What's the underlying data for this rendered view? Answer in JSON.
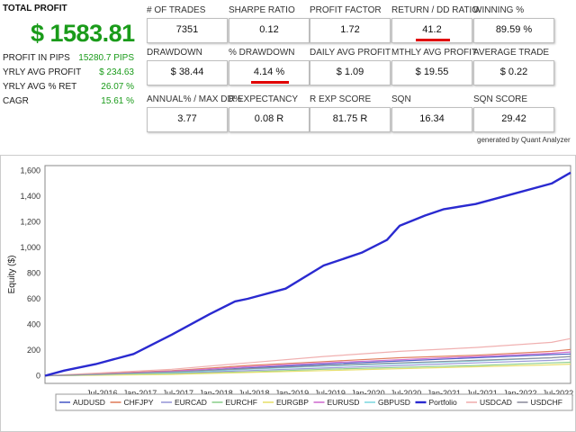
{
  "summary": {
    "total_profit_label": "TOTAL PROFIT",
    "total_profit_value": "$ 1583.81",
    "rows": [
      {
        "label": "PROFIT IN PIPS",
        "value": "15280.7 PIPS"
      },
      {
        "label": "YRLY AVG PROFIT",
        "value": "$ 234.63"
      },
      {
        "label": "YRLY AVG % RET",
        "value": "26.07 %"
      },
      {
        "label": "CAGR",
        "value": "15.61 %"
      }
    ]
  },
  "metrics": [
    {
      "label": "# OF TRADES",
      "value": "7351"
    },
    {
      "label": "SHARPE RATIO",
      "value": "0.12"
    },
    {
      "label": "PROFIT FACTOR",
      "value": "1.72"
    },
    {
      "label": "RETURN / DD RATIO",
      "value": "41.2",
      "highlight": true
    },
    {
      "label": "WINNING %",
      "value": "89.59 %"
    },
    {
      "label": "DRAWDOWN",
      "value": "$ 38.44"
    },
    {
      "label": "% DRAWDOWN",
      "value": "4.14 %",
      "highlight": true
    },
    {
      "label": "DAILY AVG PROFIT",
      "value": "$ 1.09"
    },
    {
      "label": "MTHLY AVG PROFIT",
      "value": "$ 19.55"
    },
    {
      "label": "AVERAGE TRADE",
      "value": "$ 0.22"
    },
    {
      "label": "ANNUAL% / MAX DD%",
      "value": "3.77"
    },
    {
      "label": "R EXPECTANCY",
      "value": "0.08 R"
    },
    {
      "label": "R EXP SCORE",
      "value": "81.75 R"
    },
    {
      "label": "SQN",
      "value": "16.34"
    },
    {
      "label": "SQN SCORE",
      "value": "29.42"
    }
  ],
  "generated_by": "generated by Quant Analyzer",
  "colors": {
    "profit_green": "#1a9b1a",
    "highlight_red": "#e00000",
    "portfolio": "#2a2ad0"
  },
  "chart_data": {
    "type": "line",
    "ylabel": "Equity ($)",
    "xlabel": "",
    "ylim": [
      -60,
      1640
    ],
    "yticks": [
      0,
      200,
      400,
      600,
      800,
      1000,
      1200,
      1400,
      1600
    ],
    "ytick_labels": [
      "0",
      "200",
      "400",
      "600",
      "800",
      "1,000",
      "1,200",
      "1,400",
      "1,600"
    ],
    "x_range": [
      "2015-10",
      "2022-09"
    ],
    "xticks": [
      "2016-07",
      "2017-01",
      "2017-07",
      "2018-01",
      "2018-07",
      "2019-01",
      "2019-07",
      "2020-01",
      "2020-07",
      "2021-01",
      "2021-07",
      "2022-01",
      "2022-07"
    ],
    "xtick_labels": [
      "Jul-2016",
      "Jan-2017",
      "Jul-2017",
      "Jan-2018",
      "Jul-2018",
      "Jan-2019",
      "Jul-2019",
      "Jan-2020",
      "Jul-2020",
      "Jan-2021",
      "Jul-2021",
      "Jan-2022",
      "Jul-2022"
    ],
    "grid": true,
    "legend_position": "bottom",
    "series": [
      {
        "name": "AUDUSD",
        "color": "#5060c8",
        "x": [
          "2015-10",
          "2016-06",
          "2017-06",
          "2018-06",
          "2019-06",
          "2020-06",
          "2021-06",
          "2022-06",
          "2022-09"
        ],
        "y": [
          0,
          10,
          30,
          60,
          90,
          115,
          140,
          165,
          170
        ]
      },
      {
        "name": "CHFJPY",
        "color": "#e08060",
        "x": [
          "2015-10",
          "2016-06",
          "2017-06",
          "2018-06",
          "2019-06",
          "2020-06",
          "2021-06",
          "2022-06",
          "2022-09"
        ],
        "y": [
          0,
          15,
          40,
          80,
          110,
          140,
          160,
          190,
          205
        ]
      },
      {
        "name": "EURCAD",
        "color": "#9a9ad8",
        "x": [
          "2015-10",
          "2016-06",
          "2017-06",
          "2018-06",
          "2019-06",
          "2020-06",
          "2021-06",
          "2022-06",
          "2022-09"
        ],
        "y": [
          0,
          5,
          20,
          40,
          60,
          80,
          100,
          120,
          130
        ]
      },
      {
        "name": "EURCHF",
        "color": "#90d090",
        "x": [
          "2015-10",
          "2016-06",
          "2017-06",
          "2018-06",
          "2019-06",
          "2020-06",
          "2021-06",
          "2022-06",
          "2022-09"
        ],
        "y": [
          0,
          5,
          15,
          30,
          50,
          65,
          80,
          100,
          105
        ]
      },
      {
        "name": "EURGBP",
        "color": "#e8e070",
        "x": [
          "2015-10",
          "2016-06",
          "2017-06",
          "2018-06",
          "2019-06",
          "2020-06",
          "2021-06",
          "2022-06",
          "2022-09"
        ],
        "y": [
          0,
          3,
          10,
          25,
          40,
          55,
          70,
          85,
          90
        ]
      },
      {
        "name": "EURUSD",
        "color": "#d070d0",
        "x": [
          "2015-10",
          "2016-06",
          "2017-06",
          "2018-06",
          "2019-06",
          "2020-06",
          "2021-06",
          "2022-06",
          "2022-09"
        ],
        "y": [
          0,
          12,
          35,
          70,
          100,
          125,
          150,
          175,
          185
        ]
      },
      {
        "name": "GBPUSD",
        "color": "#80d8e0",
        "x": [
          "2015-10",
          "2016-06",
          "2017-06",
          "2018-06",
          "2019-06",
          "2020-06",
          "2021-06",
          "2022-06",
          "2022-09"
        ],
        "y": [
          0,
          8,
          25,
          50,
          75,
          95,
          115,
          140,
          150
        ]
      },
      {
        "name": "Portfolio",
        "color": "#2a2ad0",
        "x": [
          "2015-10",
          "2016-01",
          "2016-06",
          "2016-12",
          "2017-06",
          "2017-12",
          "2018-04",
          "2018-06",
          "2018-12",
          "2019-06",
          "2019-12",
          "2020-04",
          "2020-06",
          "2020-10",
          "2021-01",
          "2021-06",
          "2021-12",
          "2022-06",
          "2022-09"
        ],
        "y": [
          0,
          40,
          90,
          170,
          320,
          480,
          580,
          600,
          680,
          860,
          960,
          1060,
          1170,
          1250,
          1300,
          1340,
          1420,
          1500,
          1585
        ]
      },
      {
        "name": "USDCAD",
        "color": "#f0b0b0",
        "x": [
          "2015-10",
          "2016-06",
          "2017-06",
          "2018-06",
          "2019-06",
          "2020-06",
          "2021-06",
          "2022-06",
          "2022-09"
        ],
        "y": [
          0,
          20,
          50,
          100,
          150,
          190,
          220,
          260,
          290
        ]
      },
      {
        "name": "USDCHF",
        "color": "#9090a0",
        "x": [
          "2015-10",
          "2016-06",
          "2017-06",
          "2018-06",
          "2019-06",
          "2020-06",
          "2021-06",
          "2022-06",
          "2022-09"
        ],
        "y": [
          0,
          10,
          30,
          55,
          80,
          100,
          120,
          140,
          150
        ]
      }
    ]
  }
}
